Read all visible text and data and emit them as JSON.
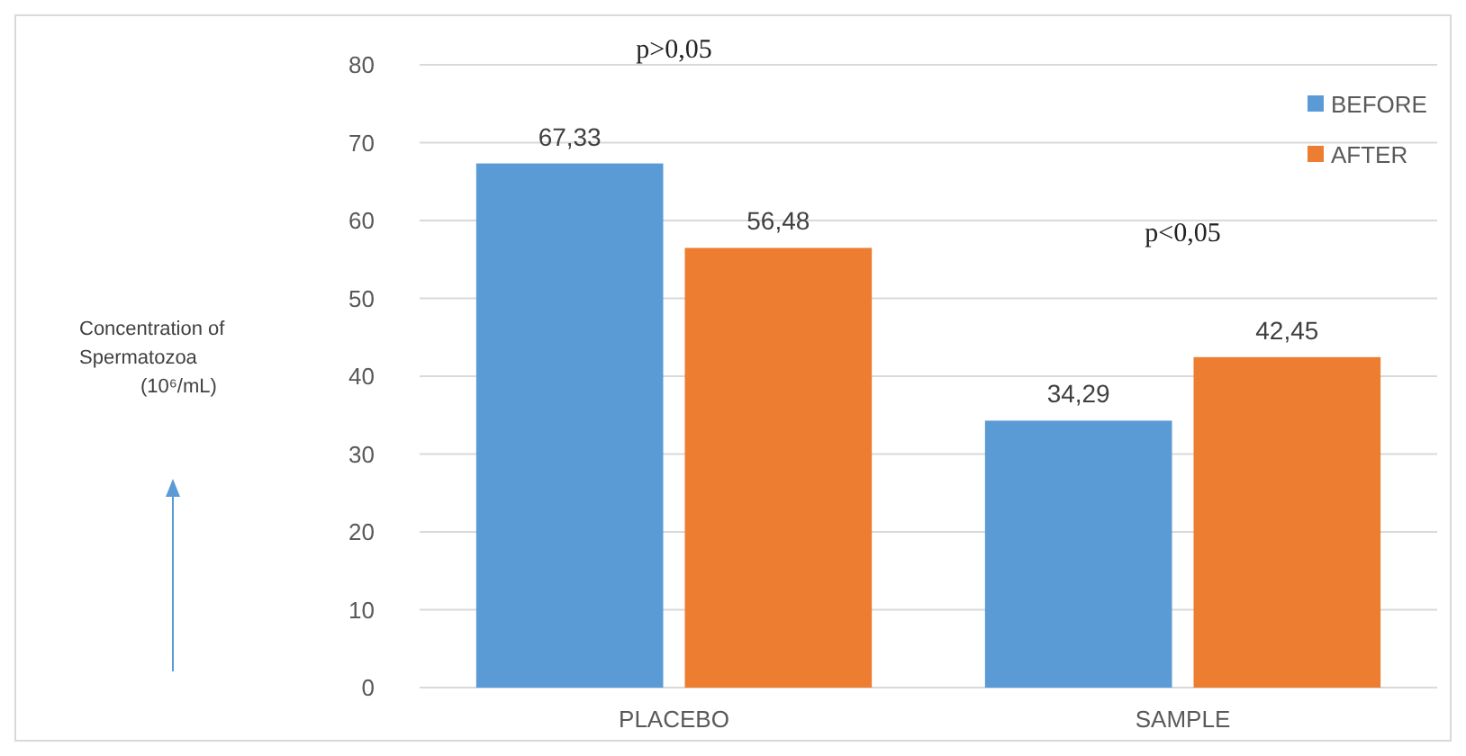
{
  "chart_data": {
    "type": "bar",
    "categories": [
      "PLACEBO",
      "SAMPLE"
    ],
    "series": [
      {
        "name": "BEFORE",
        "color": "#5b9bd5",
        "values": [
          67.33,
          34.29
        ],
        "value_labels": [
          "67,33",
          "34,29"
        ]
      },
      {
        "name": "AFTER",
        "color": "#ed7d31",
        "values": [
          56.48,
          42.45
        ],
        "value_labels": [
          "56,48",
          "42,45"
        ]
      }
    ],
    "ylim": [
      0,
      80
    ],
    "yticks": [
      0,
      10,
      20,
      30,
      40,
      50,
      60,
      70,
      80
    ],
    "grid": "y",
    "legend": "top right",
    "annotations": [
      "p>0,05",
      "p<0,05",
      "Concentration of Spermatozoa (10⁶/mL)"
    ]
  }
}
